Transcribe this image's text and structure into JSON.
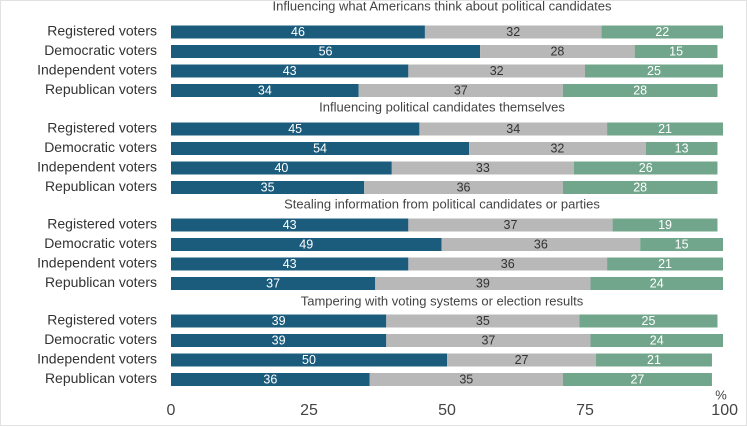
{
  "chart_data": {
    "type": "bar",
    "orientation": "horizontal",
    "stacked": true,
    "xlim": [
      0,
      100
    ],
    "x_ticks": [
      0,
      25,
      50,
      75,
      100
    ],
    "x_unit": "%",
    "grid": false,
    "legend": "none",
    "segment_colors": [
      "#1b5c7d",
      "#b8b8b8",
      "#72a68c"
    ],
    "label_colors": [
      "#ffffff",
      "#333333",
      "#ffffff"
    ],
    "groups": [
      {
        "title": "Influencing what Americans think about political candidates",
        "rows": [
          {
            "label": "Registered voters",
            "values": [
              46,
              32,
              22
            ]
          },
          {
            "label": "Democratic voters",
            "values": [
              56,
              28,
              15
            ]
          },
          {
            "label": "Independent voters",
            "values": [
              43,
              32,
              25
            ]
          },
          {
            "label": "Republican voters",
            "values": [
              34,
              37,
              28
            ]
          }
        ]
      },
      {
        "title": "Influencing political candidates themselves",
        "rows": [
          {
            "label": "Registered voters",
            "values": [
              45,
              34,
              21
            ]
          },
          {
            "label": "Democratic voters",
            "values": [
              54,
              32,
              13
            ]
          },
          {
            "label": "Independent voters",
            "values": [
              40,
              33,
              26
            ]
          },
          {
            "label": "Republican voters",
            "values": [
              35,
              36,
              28
            ]
          }
        ]
      },
      {
        "title": "Stealing information from political candidates or parties",
        "rows": [
          {
            "label": "Registered voters",
            "values": [
              43,
              37,
              19
            ]
          },
          {
            "label": "Democratic voters",
            "values": [
              49,
              36,
              15
            ]
          },
          {
            "label": "Independent voters",
            "values": [
              43,
              36,
              21
            ]
          },
          {
            "label": "Republican voters",
            "values": [
              37,
              39,
              24
            ]
          }
        ]
      },
      {
        "title": "Tampering with voting systems or election results",
        "rows": [
          {
            "label": "Registered voters",
            "values": [
              39,
              35,
              25
            ]
          },
          {
            "label": "Democratic voters",
            "values": [
              39,
              37,
              24
            ]
          },
          {
            "label": "Independent voters",
            "values": [
              50,
              27,
              21
            ]
          },
          {
            "label": "Republican voters",
            "values": [
              36,
              35,
              27
            ]
          }
        ]
      }
    ]
  }
}
